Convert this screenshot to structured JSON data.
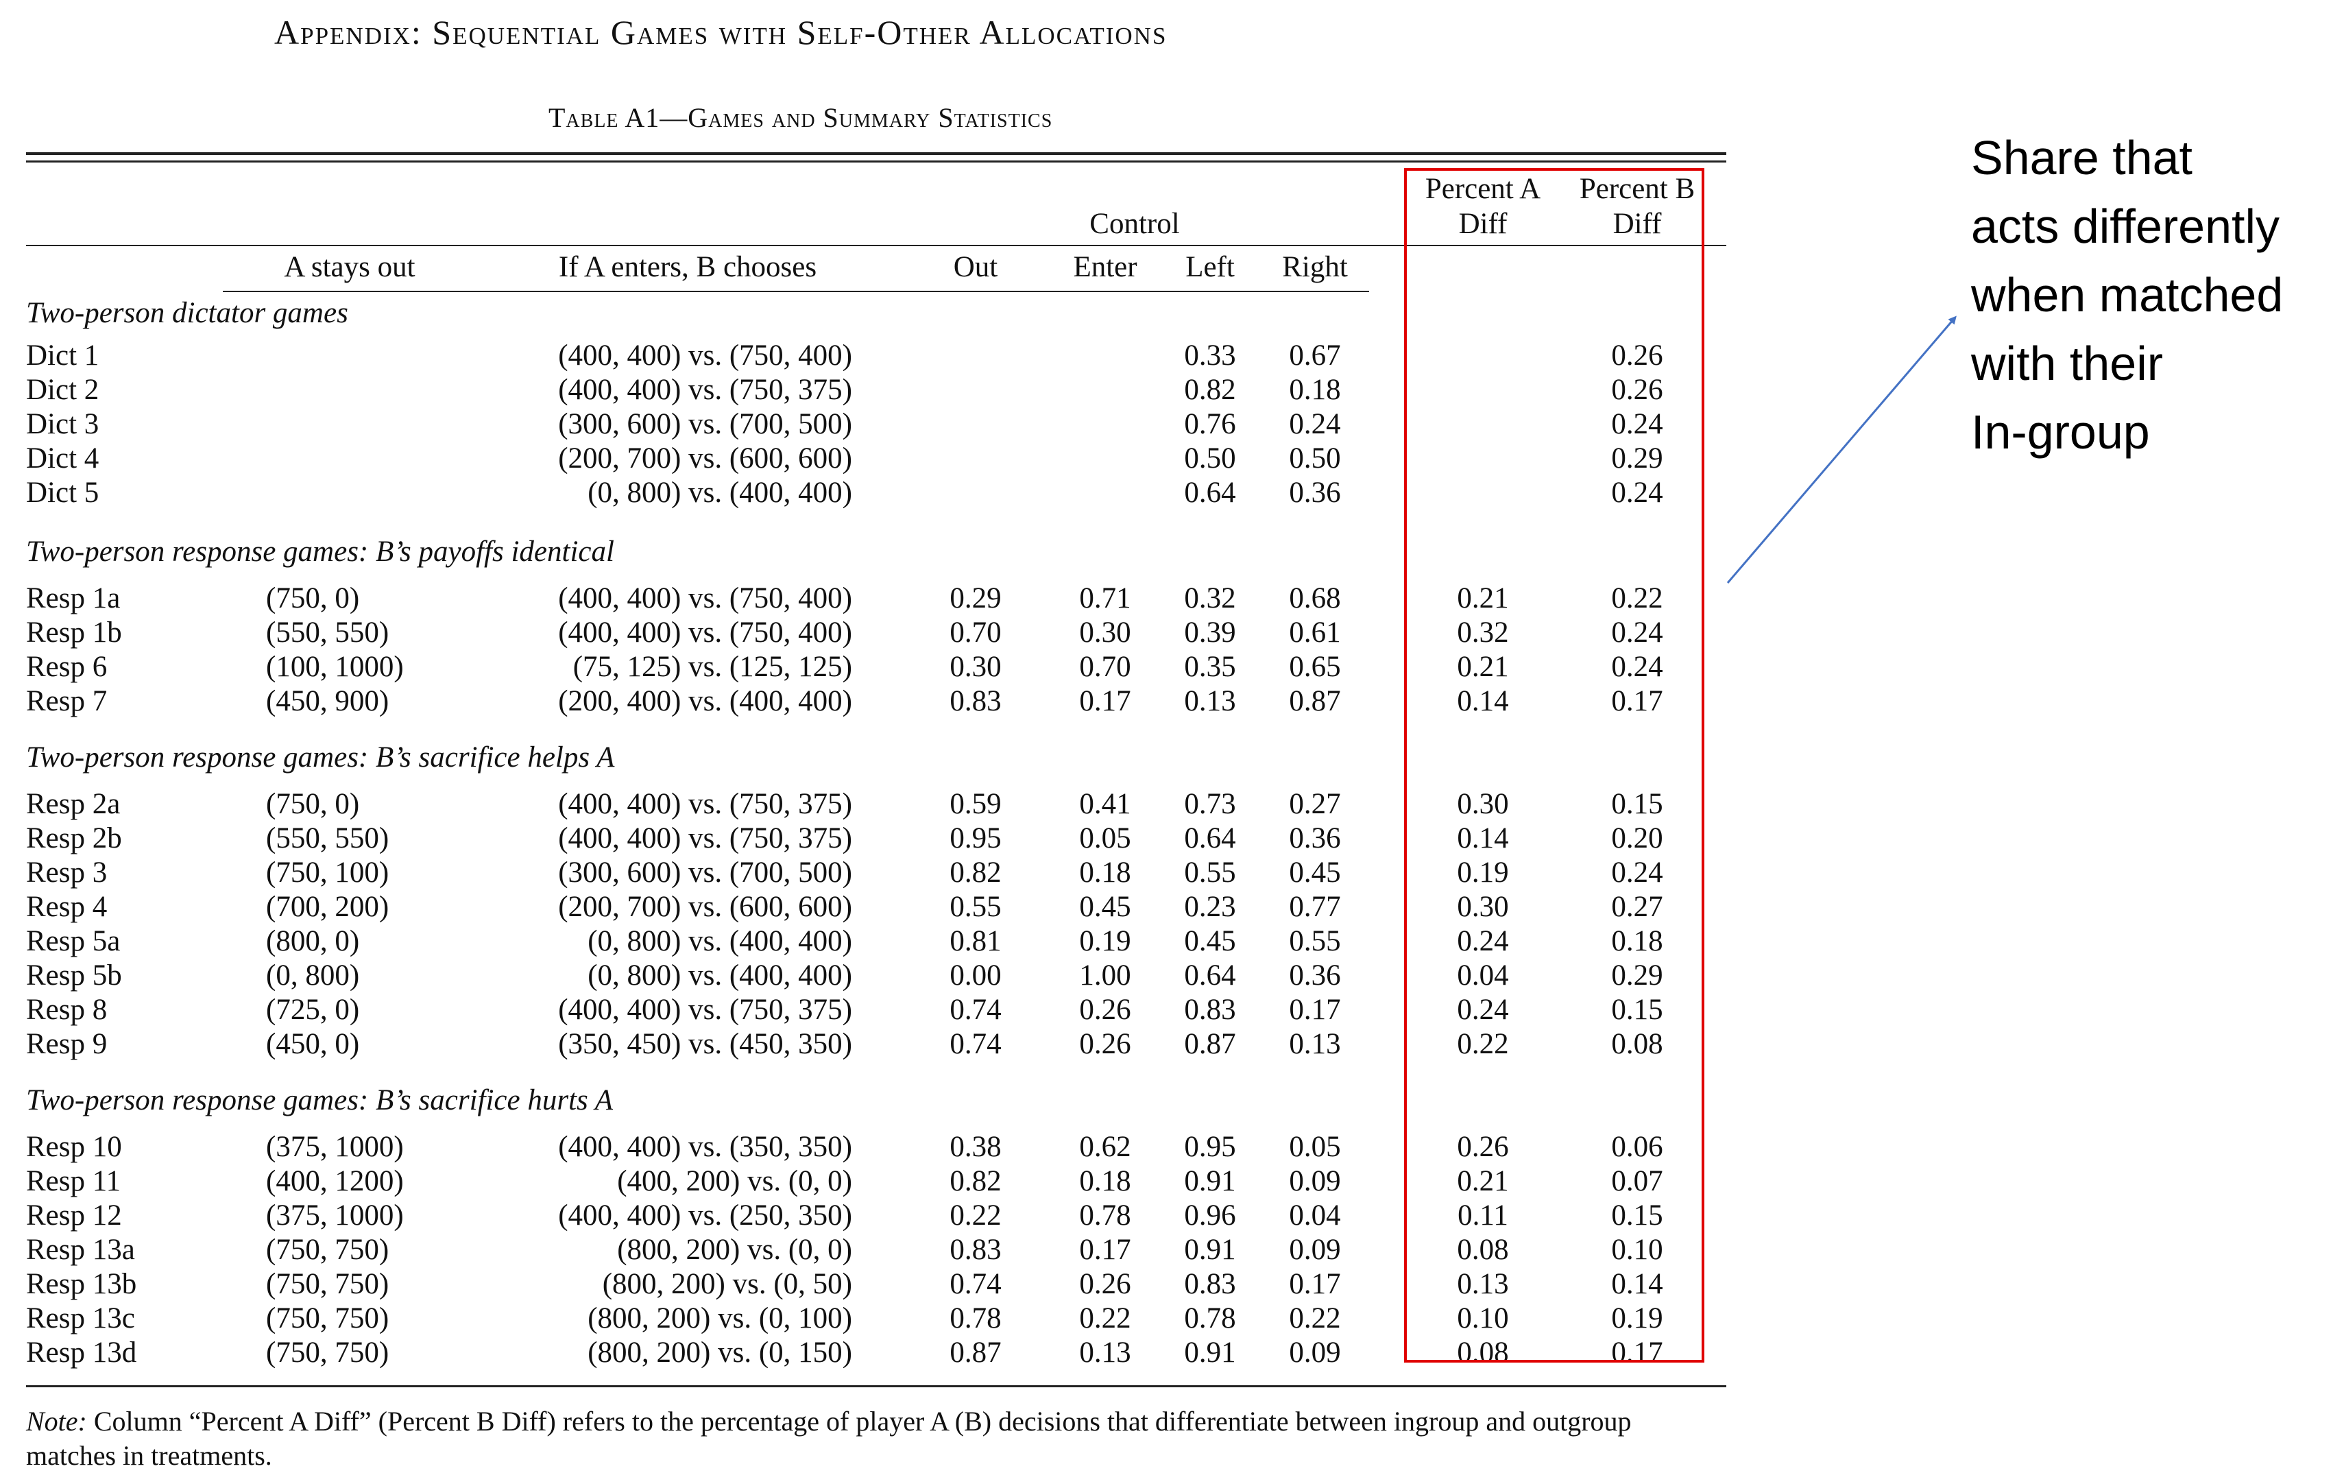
{
  "header": {
    "appendix_title": "Appendix: Sequential Games with Self-Other Allocations",
    "table_title": "Table A1—Games and Summary Statistics"
  },
  "columns": {
    "group_control": "Control",
    "pct_a_line1": "Percent A",
    "pct_a_line2": "Diff",
    "pct_b_line1": "Percent B",
    "pct_b_line2": "Diff",
    "a_stays_out": "A stays out",
    "b_chooses": "If A enters, B chooses",
    "out": "Out",
    "enter": "Enter",
    "left": "Left",
    "right": "Right"
  },
  "sections": [
    {
      "title": "Two-person dictator games",
      "rows": [
        {
          "game": "Dict 1",
          "a_out": "",
          "b_choice": "(400, 400) vs. (750, 400)",
          "out": "",
          "enter": "",
          "left": "0.33",
          "right": "0.67",
          "pct_a": "",
          "pct_b": "0.26"
        },
        {
          "game": "Dict 2",
          "a_out": "",
          "b_choice": "(400, 400) vs. (750, 375)",
          "out": "",
          "enter": "",
          "left": "0.82",
          "right": "0.18",
          "pct_a": "",
          "pct_b": "0.26"
        },
        {
          "game": "Dict 3",
          "a_out": "",
          "b_choice": "(300, 600) vs. (700, 500)",
          "out": "",
          "enter": "",
          "left": "0.76",
          "right": "0.24",
          "pct_a": "",
          "pct_b": "0.24"
        },
        {
          "game": "Dict 4",
          "a_out": "",
          "b_choice": "(200, 700) vs. (600, 600)",
          "out": "",
          "enter": "",
          "left": "0.50",
          "right": "0.50",
          "pct_a": "",
          "pct_b": "0.29"
        },
        {
          "game": "Dict 5",
          "a_out": "",
          "b_choice": "(0, 800) vs. (400, 400)",
          "out": "",
          "enter": "",
          "left": "0.64",
          "right": "0.36",
          "pct_a": "",
          "pct_b": "0.24"
        }
      ]
    },
    {
      "title": "Two-person response games: B’s payoffs identical",
      "rows": [
        {
          "game": "Resp 1a",
          "a_out": "(750, 0)",
          "b_choice": "(400, 400) vs. (750, 400)",
          "out": "0.29",
          "enter": "0.71",
          "left": "0.32",
          "right": "0.68",
          "pct_a": "0.21",
          "pct_b": "0.22"
        },
        {
          "game": "Resp 1b",
          "a_out": "(550, 550)",
          "b_choice": "(400, 400) vs. (750, 400)",
          "out": "0.70",
          "enter": "0.30",
          "left": "0.39",
          "right": "0.61",
          "pct_a": "0.32",
          "pct_b": "0.24"
        },
        {
          "game": "Resp 6",
          "a_out": "(100, 1000)",
          "b_choice": "(75, 125) vs. (125, 125)",
          "out": "0.30",
          "enter": "0.70",
          "left": "0.35",
          "right": "0.65",
          "pct_a": "0.21",
          "pct_b": "0.24"
        },
        {
          "game": "Resp 7",
          "a_out": "(450, 900)",
          "b_choice": "(200, 400) vs. (400, 400)",
          "out": "0.83",
          "enter": "0.17",
          "left": "0.13",
          "right": "0.87",
          "pct_a": "0.14",
          "pct_b": "0.17"
        }
      ]
    },
    {
      "title": "Two-person response games: B’s sacrifice helps A",
      "rows": [
        {
          "game": "Resp 2a",
          "a_out": "(750, 0)",
          "b_choice": "(400, 400) vs. (750, 375)",
          "out": "0.59",
          "enter": "0.41",
          "left": "0.73",
          "right": "0.27",
          "pct_a": "0.30",
          "pct_b": "0.15"
        },
        {
          "game": "Resp 2b",
          "a_out": "(550, 550)",
          "b_choice": "(400, 400) vs. (750, 375)",
          "out": "0.95",
          "enter": "0.05",
          "left": "0.64",
          "right": "0.36",
          "pct_a": "0.14",
          "pct_b": "0.20"
        },
        {
          "game": "Resp 3",
          "a_out": "(750, 100)",
          "b_choice": "(300, 600) vs. (700, 500)",
          "out": "0.82",
          "enter": "0.18",
          "left": "0.55",
          "right": "0.45",
          "pct_a": "0.19",
          "pct_b": "0.24"
        },
        {
          "game": "Resp 4",
          "a_out": "(700, 200)",
          "b_choice": "(200, 700) vs. (600, 600)",
          "out": "0.55",
          "enter": "0.45",
          "left": "0.23",
          "right": "0.77",
          "pct_a": "0.30",
          "pct_b": "0.27"
        },
        {
          "game": "Resp 5a",
          "a_out": "(800, 0)",
          "b_choice": "(0, 800) vs. (400, 400)",
          "out": "0.81",
          "enter": "0.19",
          "left": "0.45",
          "right": "0.55",
          "pct_a": "0.24",
          "pct_b": "0.18"
        },
        {
          "game": "Resp 5b",
          "a_out": "(0, 800)",
          "b_choice": "(0, 800) vs. (400, 400)",
          "out": "0.00",
          "enter": "1.00",
          "left": "0.64",
          "right": "0.36",
          "pct_a": "0.04",
          "pct_b": "0.29"
        },
        {
          "game": "Resp 8",
          "a_out": "(725, 0)",
          "b_choice": "(400, 400) vs. (750, 375)",
          "out": "0.74",
          "enter": "0.26",
          "left": "0.83",
          "right": "0.17",
          "pct_a": "0.24",
          "pct_b": "0.15"
        },
        {
          "game": "Resp 9",
          "a_out": "(450, 0)",
          "b_choice": "(350, 450) vs. (450, 350)",
          "out": "0.74",
          "enter": "0.26",
          "left": "0.87",
          "right": "0.13",
          "pct_a": "0.22",
          "pct_b": "0.08"
        }
      ]
    },
    {
      "title": "Two-person response games: B’s sacrifice hurts A",
      "rows": [
        {
          "game": "Resp 10",
          "a_out": "(375, 1000)",
          "b_choice": "(400, 400) vs. (350, 350)",
          "out": "0.38",
          "enter": "0.62",
          "left": "0.95",
          "right": "0.05",
          "pct_a": "0.26",
          "pct_b": "0.06"
        },
        {
          "game": "Resp 11",
          "a_out": "(400, 1200)",
          "b_choice": "(400, 200) vs. (0, 0)",
          "out": "0.82",
          "enter": "0.18",
          "left": "0.91",
          "right": "0.09",
          "pct_a": "0.21",
          "pct_b": "0.07"
        },
        {
          "game": "Resp 12",
          "a_out": "(375, 1000)",
          "b_choice": "(400, 400) vs. (250, 350)",
          "out": "0.22",
          "enter": "0.78",
          "left": "0.96",
          "right": "0.04",
          "pct_a": "0.11",
          "pct_b": "0.15"
        },
        {
          "game": "Resp 13a",
          "a_out": "(750, 750)",
          "b_choice": "(800, 200) vs. (0, 0)",
          "out": "0.83",
          "enter": "0.17",
          "left": "0.91",
          "right": "0.09",
          "pct_a": "0.08",
          "pct_b": "0.10"
        },
        {
          "game": "Resp 13b",
          "a_out": "(750, 750)",
          "b_choice": "(800, 200) vs. (0, 50)",
          "out": "0.74",
          "enter": "0.26",
          "left": "0.83",
          "right": "0.17",
          "pct_a": "0.13",
          "pct_b": "0.14"
        },
        {
          "game": "Resp 13c",
          "a_out": "(750, 750)",
          "b_choice": "(800, 200) vs. (0, 100)",
          "out": "0.78",
          "enter": "0.22",
          "left": "0.78",
          "right": "0.22",
          "pct_a": "0.10",
          "pct_b": "0.19"
        },
        {
          "game": "Resp 13d",
          "a_out": "(750, 750)",
          "b_choice": "(800, 200) vs. (0, 150)",
          "out": "0.87",
          "enter": "0.13",
          "left": "0.91",
          "right": "0.09",
          "pct_a": "0.08",
          "pct_b": "0.17"
        }
      ]
    }
  ],
  "note": {
    "label": "Note:",
    "text": " Column “Percent A Diff” (Percent B Diff) refers to the percentage of player A (B) decisions that differentiate between ingroup and outgroup matches in treatments."
  },
  "annotation": {
    "text_lines": [
      "Share that",
      "acts differently",
      "when matched",
      "with their",
      "In-group"
    ],
    "box_color": "#e00000",
    "arrow_color": "#4472c4"
  }
}
